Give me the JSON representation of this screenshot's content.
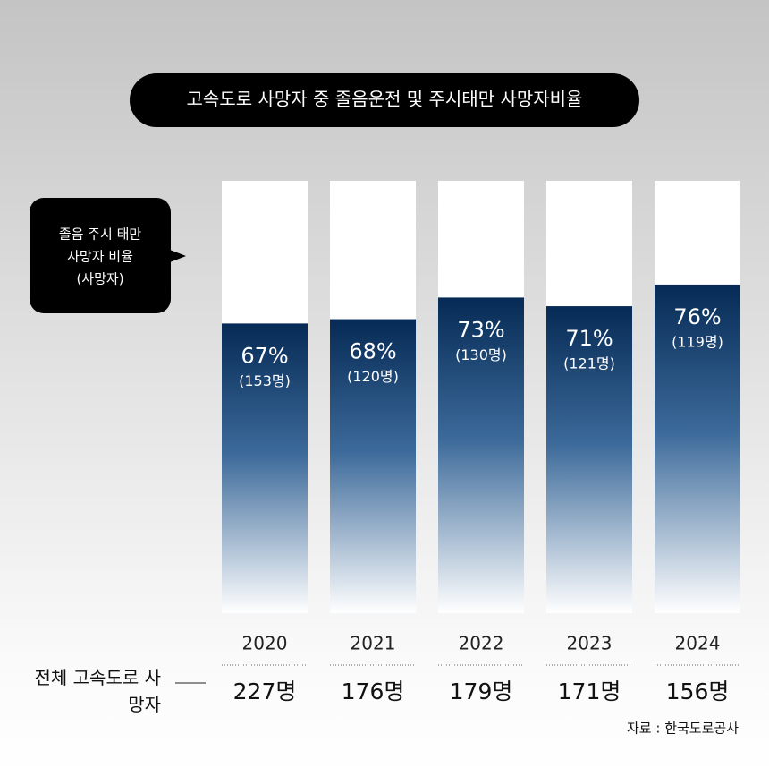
{
  "chart_data": {
    "type": "bar",
    "title": "고속도로 사망자 중 졸음운전 및  주시태만 사망자비율",
    "annotation": [
      "졸음 주시 태만",
      "사망자 비율",
      "(사망자)"
    ],
    "categories": [
      "2020",
      "2021",
      "2022",
      "2023",
      "2024"
    ],
    "values": [
      67,
      68,
      73,
      71,
      76
    ],
    "value_labels": [
      "67%",
      "68%",
      "73%",
      "71%",
      "76%"
    ],
    "color": "#062a55",
    "ylim": [
      0,
      100
    ],
    "counts": {
      "values": [
        153,
        120,
        130,
        121,
        119
      ],
      "value_labels": [
        "(153명)",
        "(120명)",
        "(130명)",
        "(121명)",
        "(119명)"
      ]
    },
    "totals": {
      "label": "전체 고속도로 사망자",
      "values": [
        227,
        176,
        179,
        171,
        156
      ],
      "value_labels": [
        "227명",
        "176명",
        "179명",
        "171명",
        "156명"
      ]
    },
    "source": "자료 : 한국도로공사"
  }
}
